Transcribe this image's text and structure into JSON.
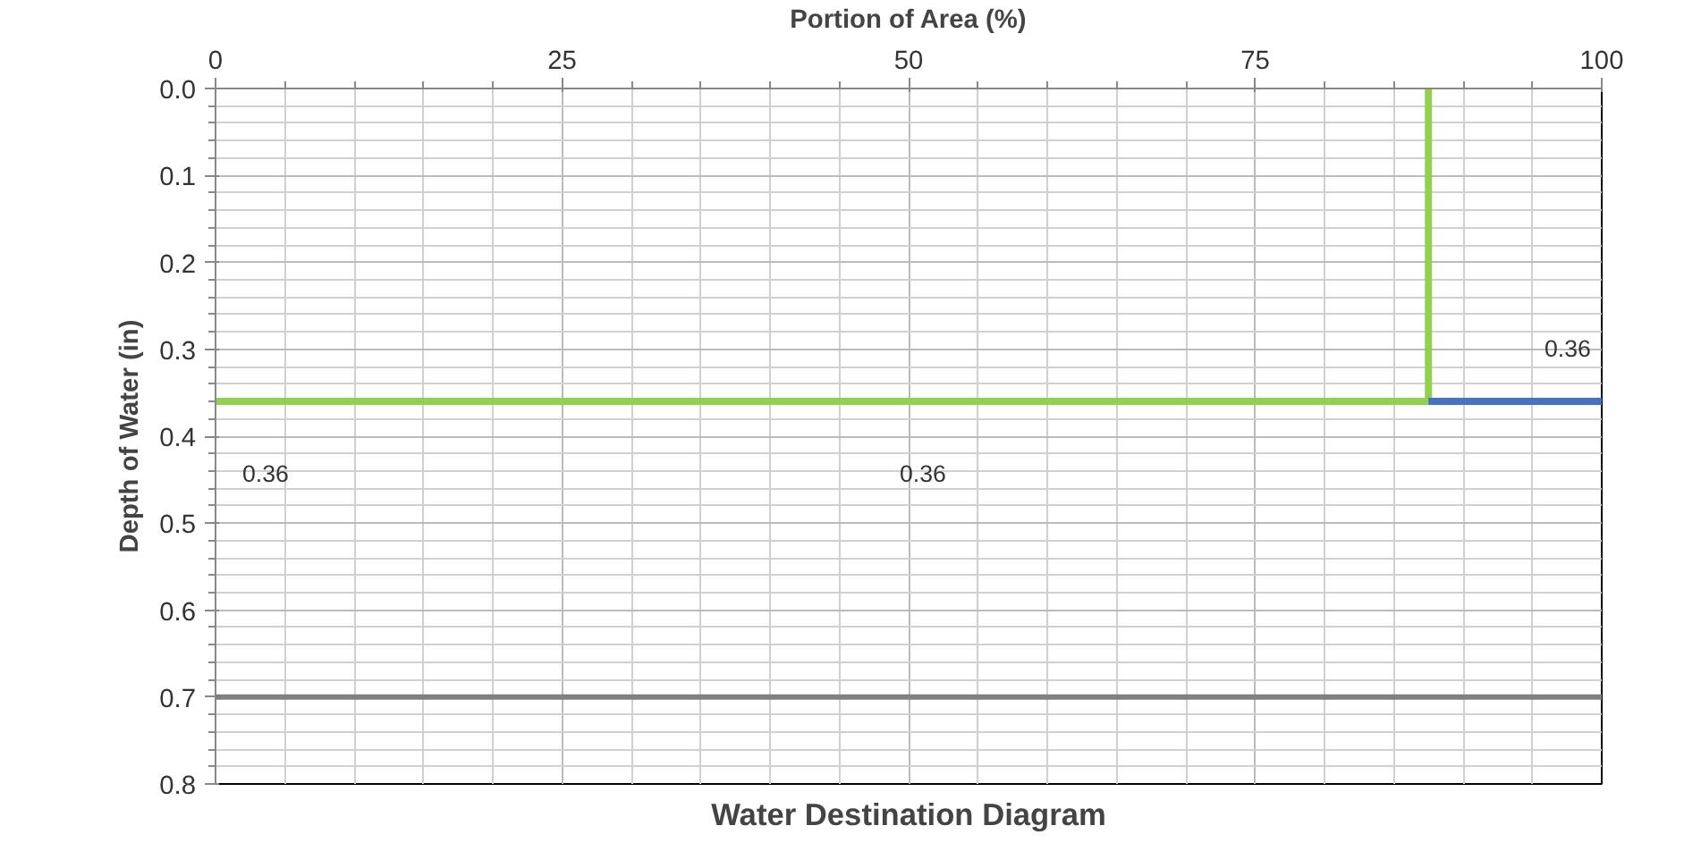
{
  "chart_data": {
    "type": "line",
    "title": "Water Destination Diagram",
    "xlabel": "Portion of Area (%)",
    "ylabel": "Depth of Water (in)",
    "xlim": [
      0,
      100
    ],
    "xticks": [
      0,
      25,
      50,
      75,
      100
    ],
    "ylim": [
      0.8,
      0
    ],
    "yticks": [
      {
        "value": 0,
        "label": "0.0"
      },
      {
        "value": 0.1,
        "label": "0.1"
      },
      {
        "value": 0.2,
        "label": "0.2"
      },
      {
        "value": 0.3,
        "label": "0.3"
      },
      {
        "value": 0.4,
        "label": "0.4"
      },
      {
        "value": 0.5,
        "label": "0.5"
      },
      {
        "value": 0.6,
        "label": "0.6"
      },
      {
        "value": 0.7,
        "label": "0.7"
      },
      {
        "value": 0.8,
        "label": "0.8"
      }
    ],
    "grid": true,
    "marker": "none",
    "line_style": "solid",
    "series": [
      {
        "color": "#92d050",
        "x": [
          0,
          87.5,
          87.5
        ],
        "values": [
          0.36,
          0.36,
          0
        ]
      },
      {
        "color": "#4472c4",
        "x": [
          87.5,
          100
        ],
        "values": [
          0.36,
          0.36
        ]
      }
    ],
    "ref_lines": [
      {
        "axis": "y",
        "value": 0.7,
        "color": "#808080"
      }
    ],
    "annotations": [
      {
        "text": "0.36",
        "x": 0,
        "y": 0.36
      },
      {
        "text": "0.36",
        "x": 50,
        "y": 0.36
      },
      {
        "text": "0.36",
        "x": 100,
        "y": 0.36
      }
    ]
  }
}
